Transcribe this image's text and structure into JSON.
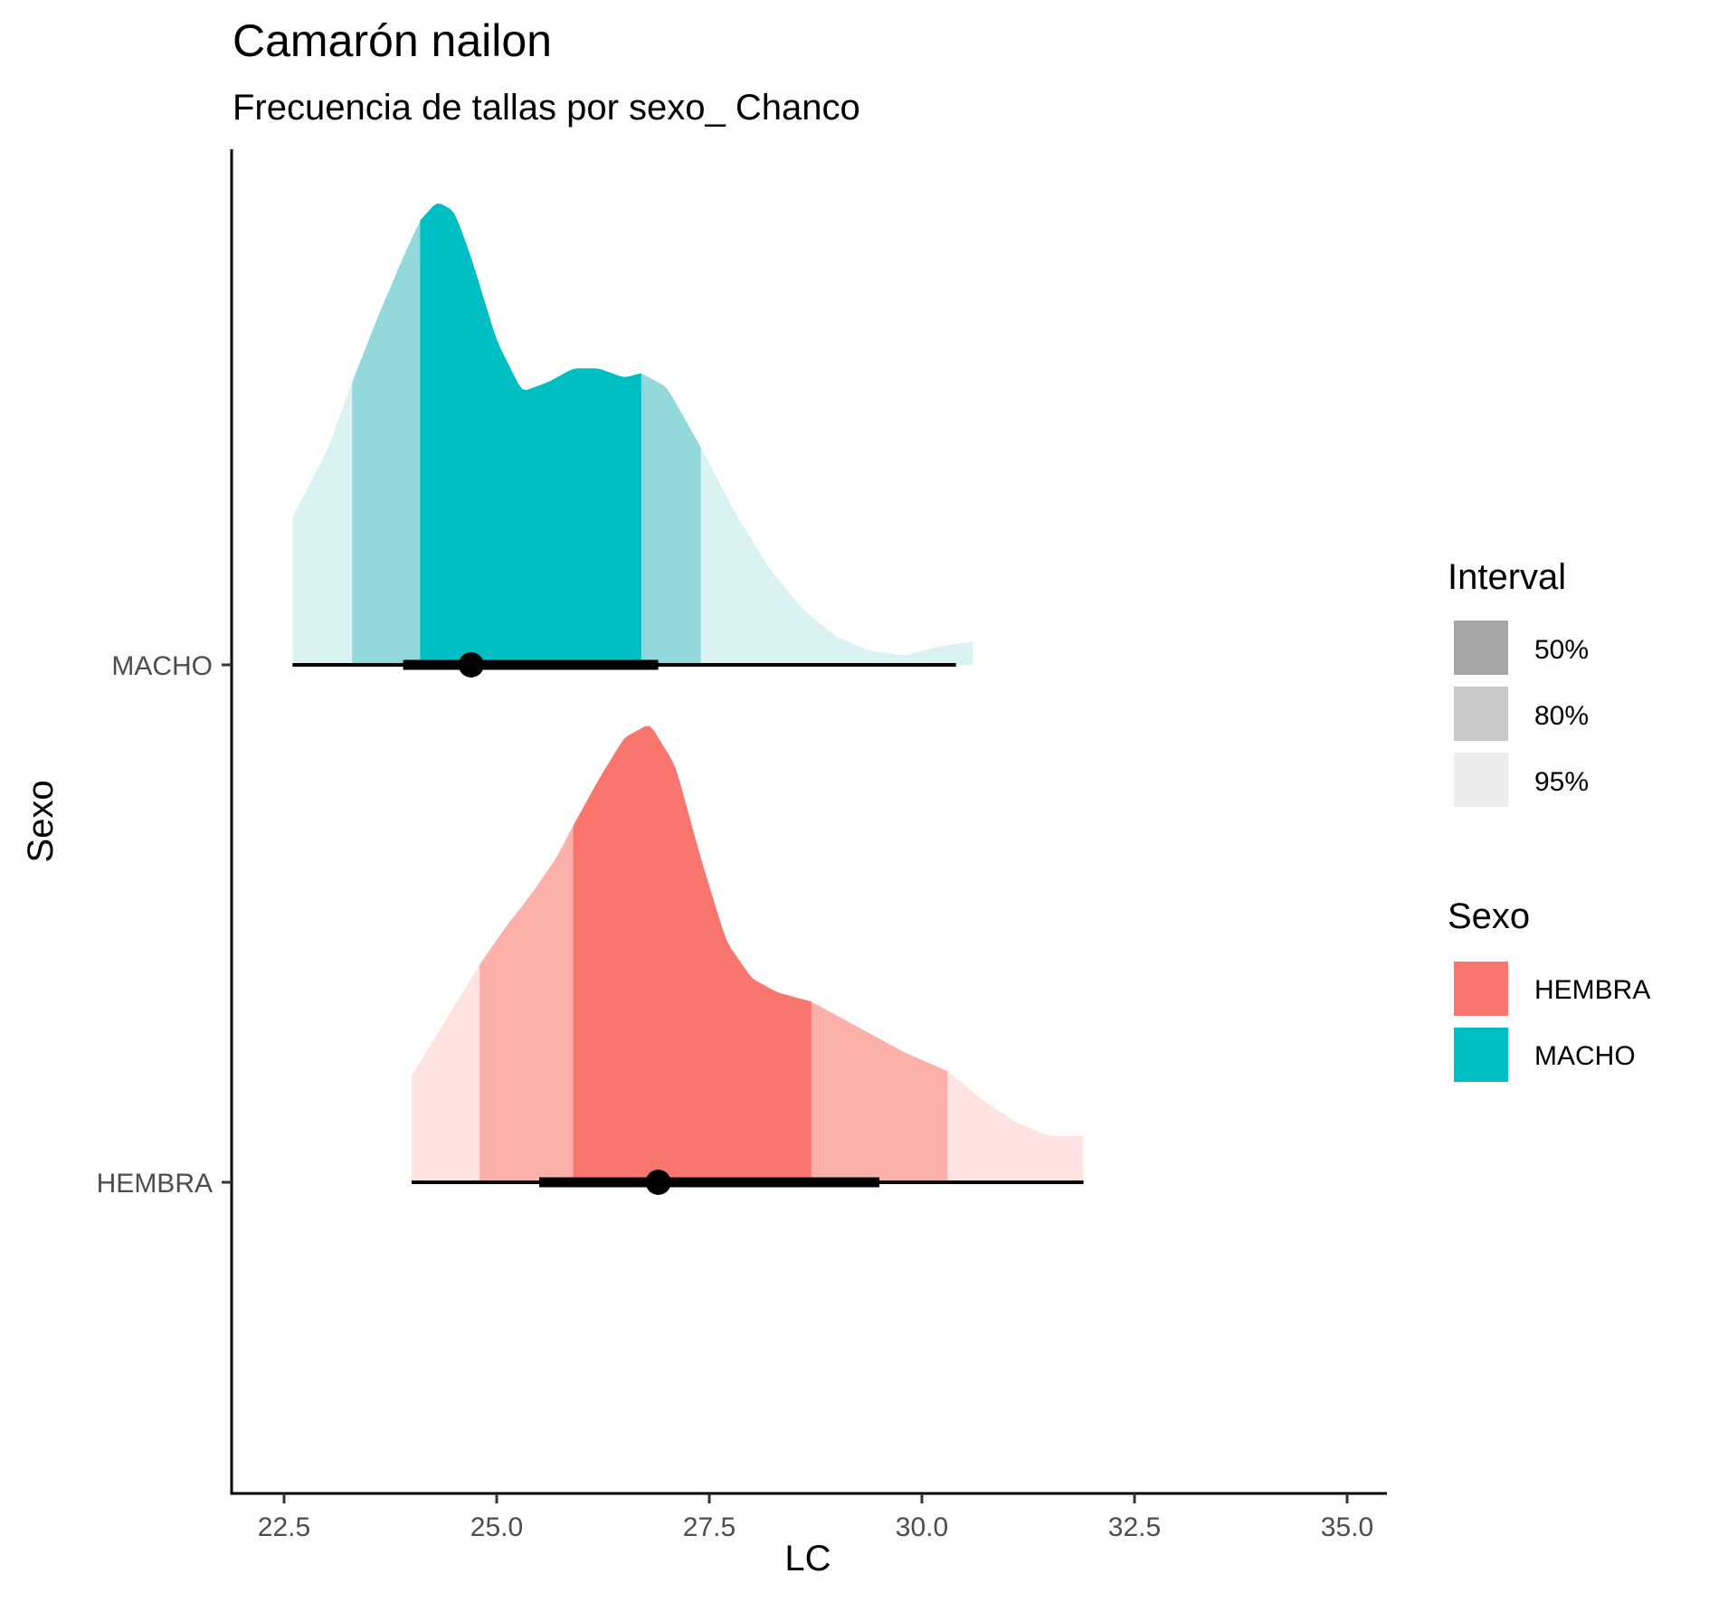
{
  "chart_data": {
    "type": "halfeye",
    "title": "Camarón nailon",
    "subtitle": "Frecuencia de tallas por sexo_ Chanco",
    "xlabel": "LC",
    "ylabel": "Sexo",
    "xlim": [
      21.8,
      35.5
    ],
    "x_ticks": [
      "22.5",
      "25.0",
      "27.5",
      "30.0",
      "32.5",
      "35.0"
    ],
    "x_tick_values": [
      22.5,
      25.0,
      27.5,
      30.0,
      32.5,
      35.0
    ],
    "categories": [
      "MACHO",
      "HEMBRA"
    ],
    "series": [
      {
        "name": "MACHO",
        "color": "#00BFC4",
        "median": 24.7,
        "interval_50": [
          23.9,
          26.9
        ],
        "interval_80": [
          24.1,
          26.7
        ],
        "interval_95": [
          22.6,
          30.4
        ],
        "fill_80_95": [
          23.3,
          27.4
        ],
        "fill_50": [
          24.1,
          26.7
        ],
        "density_x": [
          22.6,
          23.0,
          23.3,
          23.6,
          23.9,
          24.1,
          24.3,
          24.5,
          24.7,
          25.0,
          25.3,
          25.6,
          25.9,
          26.2,
          26.5,
          26.7,
          27.0,
          27.4,
          27.8,
          28.2,
          28.6,
          29.0,
          29.4,
          29.8,
          30.2,
          30.6
        ],
        "density_y": [
          0.32,
          0.46,
          0.61,
          0.75,
          0.88,
          0.96,
          1.0,
          0.98,
          0.88,
          0.7,
          0.59,
          0.61,
          0.64,
          0.64,
          0.62,
          0.63,
          0.6,
          0.47,
          0.33,
          0.21,
          0.12,
          0.06,
          0.03,
          0.02,
          0.04,
          0.05
        ]
      },
      {
        "name": "HEMBRA",
        "color": "#F8766D",
        "median": 26.9,
        "interval_50": [
          25.5,
          29.5
        ],
        "interval_95": [
          24.0,
          31.9
        ],
        "fill_80_95": [
          24.8,
          30.3
        ],
        "fill_50": [
          25.9,
          28.7
        ],
        "density_x": [
          24.0,
          24.4,
          24.8,
          25.1,
          25.4,
          25.7,
          25.9,
          26.2,
          26.5,
          26.8,
          27.1,
          27.4,
          27.7,
          28.0,
          28.3,
          28.7,
          29.0,
          29.4,
          29.8,
          30.3,
          30.7,
          31.1,
          31.5,
          31.9
        ],
        "density_y": [
          0.23,
          0.35,
          0.47,
          0.55,
          0.62,
          0.7,
          0.77,
          0.87,
          0.96,
          0.99,
          0.9,
          0.7,
          0.52,
          0.44,
          0.41,
          0.39,
          0.36,
          0.32,
          0.28,
          0.24,
          0.18,
          0.13,
          0.1,
          0.1
        ]
      }
    ],
    "legend": {
      "interval_title": "Interval",
      "interval_items": [
        {
          "label": "50%",
          "color": "#a6a6a6"
        },
        {
          "label": "80%",
          "color": "#c9c9c9"
        },
        {
          "label": "95%",
          "color": "#ececec"
        }
      ],
      "sexo_title": "Sexo",
      "sexo_items": [
        {
          "label": "HEMBRA",
          "color": "#F8766D"
        },
        {
          "label": "MACHO",
          "color": "#00BFC4"
        }
      ],
      "position": "right"
    },
    "colors": {
      "macho_50": "#00BFC4",
      "macho_80": "#93D9DB",
      "macho_95": "#DBF2F3",
      "hembra_50": "#F8766D",
      "hembra_80": "#FDB0A9",
      "hembra_95": "#FEE3E0"
    },
    "grid": false
  }
}
